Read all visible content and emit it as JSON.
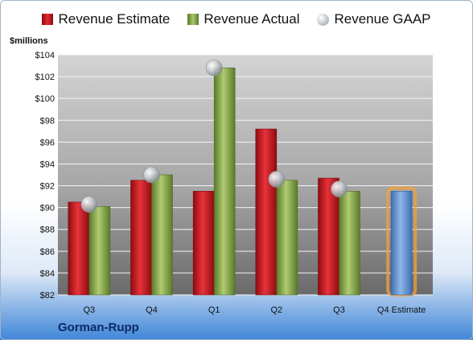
{
  "legend": {
    "estimate": "Revenue Estimate",
    "actual": "Revenue Actual",
    "gaap": "Revenue GAAP"
  },
  "unit_label": "$millions",
  "company": "Gorman-Rupp",
  "colors": {
    "estimate": "#d61f26",
    "actual": "#8fb04a",
    "gaap": "#b8bcc2",
    "forecast": "#6f9fd8",
    "forecast_glow": "#f2a23a"
  },
  "chart_data": {
    "type": "bar",
    "categories": [
      "Q3",
      "Q4",
      "Q1",
      "Q2",
      "Q3",
      "Q4 Estimate"
    ],
    "ylabel": "$millions",
    "ylim": [
      82,
      104
    ],
    "yticks": [
      "$82",
      "$84",
      "$86",
      "$88",
      "$90",
      "$92",
      "$94",
      "$96",
      "$98",
      "$100",
      "$102",
      "$104"
    ],
    "ytick_values": [
      82,
      84,
      86,
      88,
      90,
      92,
      94,
      96,
      98,
      100,
      102,
      104
    ],
    "grid": true,
    "legend_position": "top",
    "series": [
      {
        "name": "Revenue Estimate",
        "type": "bar",
        "values": [
          90.5,
          92.5,
          91.5,
          97.2,
          92.7,
          null
        ]
      },
      {
        "name": "Revenue Actual",
        "type": "bar",
        "values": [
          90.1,
          93.0,
          102.8,
          92.5,
          91.5,
          null
        ]
      },
      {
        "name": "Revenue GAAP",
        "type": "scatter",
        "values": [
          90.3,
          93.0,
          102.8,
          92.6,
          91.7,
          null
        ]
      }
    ],
    "forecast": {
      "category": "Q4 Estimate",
      "value": 91.5
    }
  }
}
